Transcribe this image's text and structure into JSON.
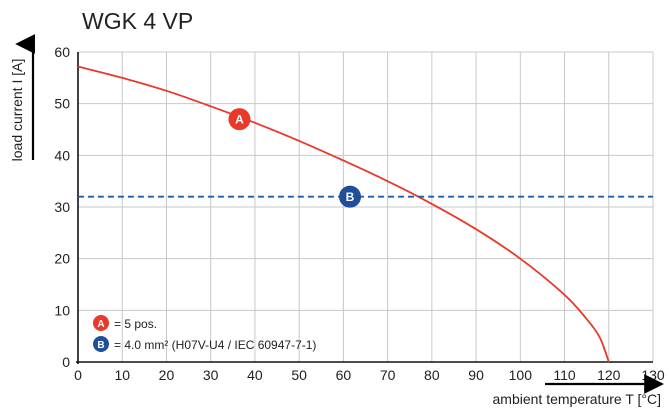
{
  "chart_data": {
    "type": "line",
    "title": "WGK 4 VP",
    "xlabel": "ambient temperature T [°C]",
    "ylabel": "load current I [A]",
    "xlim": [
      0,
      130
    ],
    "ylim": [
      0,
      60
    ],
    "x_ticks": [
      0,
      10,
      20,
      30,
      40,
      50,
      60,
      70,
      80,
      90,
      100,
      110,
      120,
      130
    ],
    "y_ticks": [
      0,
      10,
      20,
      30,
      40,
      50,
      60
    ],
    "grid": true,
    "legend_position": "bottom-left",
    "series": [
      {
        "marker": "A",
        "color": "#e8392a",
        "style": "solid",
        "x": [
          0,
          10,
          20,
          30,
          40,
          50,
          60,
          70,
          80,
          90,
          100,
          110,
          115,
          118,
          120
        ],
        "y": [
          57.2,
          55.0,
          52.5,
          49.5,
          46.3,
          42.8,
          39.0,
          35.0,
          30.6,
          25.7,
          20.0,
          13.0,
          8.3,
          4.7,
          0
        ]
      },
      {
        "marker": "B",
        "color": "#1f5fa8",
        "style": "dashed",
        "x": [
          0,
          130
        ],
        "y": [
          32,
          32
        ]
      }
    ],
    "markers": [
      {
        "label": "A",
        "color": "#e8392a",
        "x": 36.5,
        "y": 47
      },
      {
        "label": "B",
        "color": "#1f4f9a",
        "x": 61.5,
        "y": 32
      }
    ],
    "legend": [
      {
        "badge": "A",
        "color": "#e8392a",
        "text": "= 5 pos."
      },
      {
        "badge": "B",
        "color": "#1f4f9a",
        "text": "= 4.0 mm² (H07V-U4 / IEC 60947-7-1)"
      }
    ]
  }
}
